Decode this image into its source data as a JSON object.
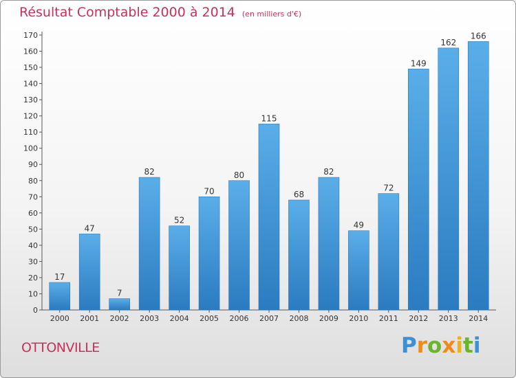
{
  "title": "Résultat Comptable 2000 à 2014",
  "subtitle": "(en milliers d'€)",
  "town": "OTTONVILLE",
  "logo": [
    "P",
    "r",
    "o",
    "x",
    "i",
    "t",
    "i"
  ],
  "colors": {
    "bar": "#3f97d8",
    "title": "#c8305a"
  },
  "chart_data": {
    "type": "bar",
    "title": "Résultat Comptable 2000 à 2014",
    "subtitle": "(en milliers d'€)",
    "xlabel": "",
    "ylabel": "",
    "categories": [
      "2000",
      "2001",
      "2002",
      "2003",
      "2004",
      "2005",
      "2006",
      "2007",
      "2008",
      "2009",
      "2010",
      "2011",
      "2012",
      "2013",
      "2014"
    ],
    "values": [
      17,
      47,
      7,
      82,
      52,
      70,
      80,
      115,
      68,
      82,
      49,
      72,
      149,
      162,
      166
    ],
    "ylim": [
      0,
      170
    ],
    "yticks": [
      0,
      10,
      20,
      30,
      40,
      50,
      60,
      70,
      80,
      90,
      100,
      110,
      120,
      130,
      140,
      150,
      160,
      170
    ],
    "grid": false,
    "legend": "none"
  }
}
